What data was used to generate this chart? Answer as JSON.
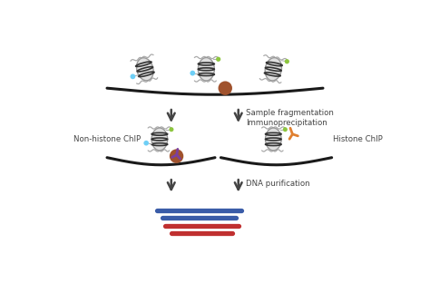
{
  "bg_color": "#ffffff",
  "dna_color": "#1a1a1a",
  "nucleosome_body_color": "#e0e0e0",
  "nucleosome_outline": "#999999",
  "nucleosome_stripe": "#333333",
  "tail_color": "#aaaaaa",
  "cyan_dot": "#6ecff6",
  "green_dot": "#8dc63f",
  "brown_dot": "#a0522d",
  "purple_ab": "#7b3f9e",
  "orange_ab": "#e08030",
  "dna_blue": "#3a5ca8",
  "dna_red": "#c03030",
  "arrow_color": "#444444",
  "text_color": "#444444",
  "label_fragmentation": "Sample fragmentation\nImmunoprecipitation",
  "label_dna_purification": "DNA purification",
  "label_nonhistone": "Non-histone ChIP",
  "label_histone": "Histone ChIP",
  "fig_width": 4.74,
  "fig_height": 3.23,
  "dpi": 100
}
